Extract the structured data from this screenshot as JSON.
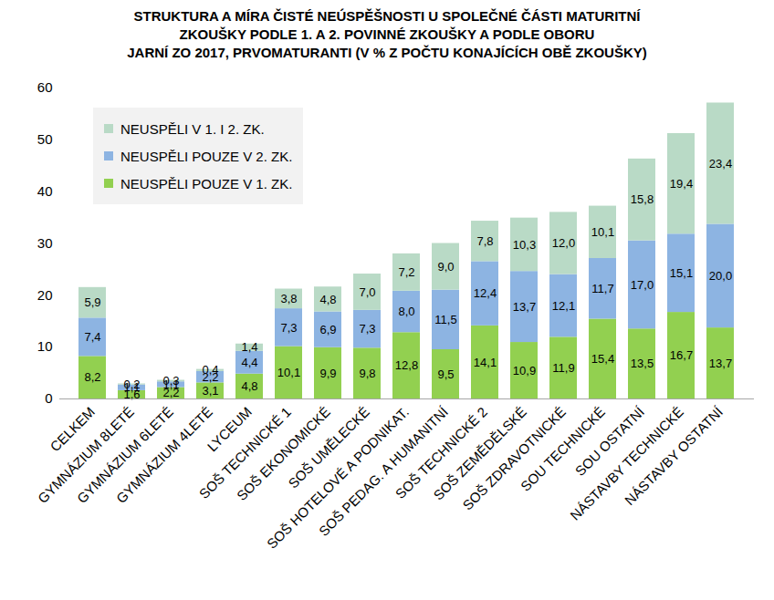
{
  "chart_data": {
    "type": "bar",
    "title": "STRUKTURA A MÍRA ČISTÉ NEÚSPĚŠNOSTI U SPOLEČNÉ ČÁSTI MATURITNÍ\nZKOUŠKY PODLE 1. A 2. POVINNÉ ZKOUŠKY A PODLE OBORU\nJARNÍ ZO 2017, PRVOMATURANTI (V % Z POČTU KONAJÍCÍCH OBĚ ZKOUŠKY)",
    "categories": [
      "CELKEM",
      "GYMNÁZIUM 8LETÉ",
      "GYMNÁZIUM 6LETÉ",
      "GYMNÁZIUM 4LETÉ",
      "LYCEUM",
      "SOŠ TECHNICKÉ 1",
      "SOŠ EKONOMICKÉ",
      "SOŠ UMĚLECKÉ",
      "SOŠ HOTELOVÉ A PODNIKAT.",
      "SOŠ PEDAG. A HUMANITNÍ",
      "SOŠ TECHNICKÉ 2",
      "SOŠ ZEMĚDĚLSKÉ",
      "SOŠ ZDRAVOTNICKÉ",
      "SOU TECHNICKÉ",
      "SOU OSTATNÍ",
      "NÁSTAVBY TECHNICKÉ",
      "NÁSTAVBY OSTATNÍ"
    ],
    "series": [
      {
        "name": "NEUSPĚLI POUZE V 1. ZK.",
        "color": "#92d050",
        "values": [
          8.2,
          1.6,
          2.2,
          3.1,
          4.8,
          10.1,
          9.9,
          9.8,
          12.8,
          9.5,
          14.1,
          10.9,
          11.9,
          15.4,
          13.5,
          16.7,
          13.7
        ],
        "value_labels": [
          "8,2",
          "1,6",
          "2,2",
          "3,1",
          "4,8",
          "10,1",
          "9,9",
          "9,8",
          "12,8",
          "9,5",
          "14,1",
          "10,9",
          "11,9",
          "15,4",
          "13,5",
          "16,7",
          "13,7"
        ]
      },
      {
        "name": "NEUSPĚLI POUZE V 2. ZK.",
        "color": "#8db4e2",
        "values": [
          7.4,
          1.1,
          1.1,
          2.2,
          4.4,
          7.3,
          6.9,
          7.3,
          8.0,
          11.5,
          12.4,
          13.7,
          12.1,
          11.7,
          17.0,
          15.1,
          20.0
        ],
        "value_labels": [
          "7,4",
          "1,1",
          "1,1",
          "2,2",
          "4,4",
          "7,3",
          "6,9",
          "7,3",
          "8,0",
          "11,5",
          "12,4",
          "13,7",
          "12,1",
          "11,7",
          "17,0",
          "15,1",
          "20,0"
        ]
      },
      {
        "name": "NEUSPĚLI V 1. I 2. ZK.",
        "color": "#b9dac6",
        "values": [
          5.9,
          0.2,
          0.3,
          0.4,
          1.4,
          3.8,
          4.8,
          7.0,
          7.2,
          9.0,
          7.8,
          10.3,
          12.0,
          10.1,
          15.8,
          19.4,
          23.4
        ],
        "value_labels": [
          "5,9",
          "0,2",
          "0,3",
          "0,4",
          "1,4",
          "3,8",
          "4,8",
          "7,0",
          "7,2",
          "9,0",
          "7,8",
          "10,3",
          "12,0",
          "10,1",
          "15,8",
          "19,4",
          "23,4"
        ]
      }
    ],
    "ylim": [
      0,
      60
    ],
    "yticks": [
      0,
      10,
      20,
      30,
      40,
      50,
      60
    ],
    "grid": false,
    "stacked": true,
    "data_labels": true,
    "legend": "top-left"
  }
}
